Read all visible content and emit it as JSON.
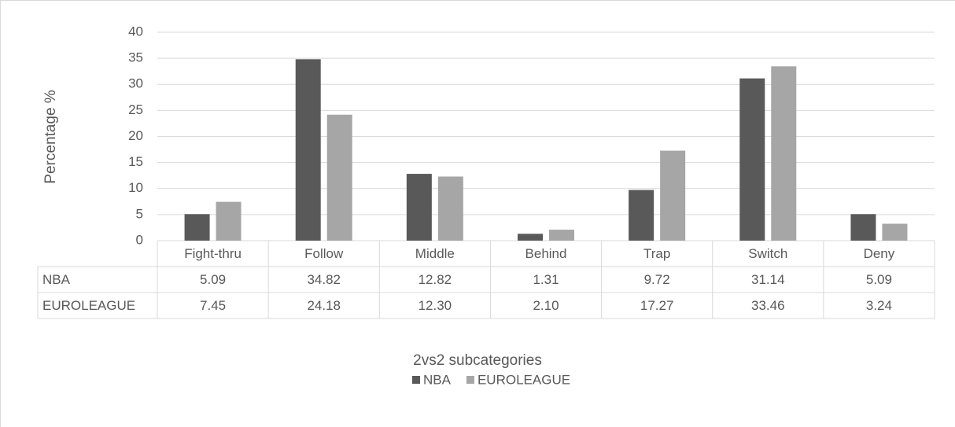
{
  "chart_data": {
    "type": "bar",
    "x_label": "2vs2 subcategories",
    "y_label": "Percentage %",
    "categories": [
      "Fight-thru",
      "Follow",
      "Middle",
      "Behind",
      "Trap",
      "Switch",
      "Deny"
    ],
    "series": [
      {
        "name": "NBA",
        "color": "#595959",
        "values": [
          5.09,
          34.82,
          12.82,
          1.31,
          9.72,
          31.14,
          5.09
        ],
        "value_labels": [
          "5.09",
          "34.82",
          "12.82",
          "1.31",
          "9.72",
          "31.14",
          "5.09"
        ]
      },
      {
        "name": "EUROLEAGUE",
        "color": "#a6a6a6",
        "values": [
          7.45,
          24.18,
          12.3,
          2.1,
          17.27,
          33.46,
          3.24
        ],
        "value_labels": [
          "7.45",
          "24.18",
          "12.30",
          "2.10",
          "17.27",
          "33.46",
          "3.24"
        ]
      }
    ],
    "ylim": [
      0,
      40
    ],
    "yticks": [
      0,
      5,
      10,
      15,
      20,
      25,
      30,
      35,
      40
    ],
    "grid": true,
    "legend": "bottom"
  }
}
